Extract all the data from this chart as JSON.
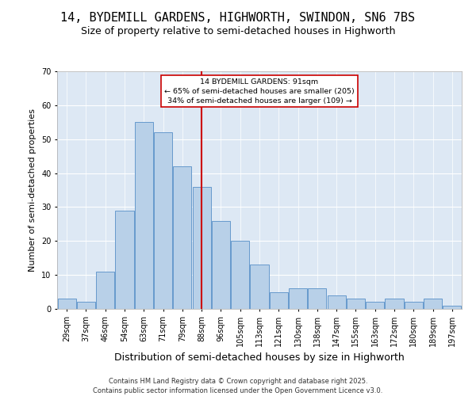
{
  "title1": "14, BYDEMILL GARDENS, HIGHWORTH, SWINDON, SN6 7BS",
  "title2": "Size of property relative to semi-detached houses in Highworth",
  "xlabel": "Distribution of semi-detached houses by size in Highworth",
  "ylabel": "Number of semi-detached properties",
  "categories": [
    "29sqm",
    "37sqm",
    "46sqm",
    "54sqm",
    "63sqm",
    "71sqm",
    "79sqm",
    "88sqm",
    "96sqm",
    "105sqm",
    "113sqm",
    "121sqm",
    "130sqm",
    "138sqm",
    "147sqm",
    "155sqm",
    "163sqm",
    "172sqm",
    "180sqm",
    "189sqm",
    "197sqm"
  ],
  "values": [
    3,
    2,
    11,
    29,
    55,
    52,
    42,
    36,
    26,
    20,
    13,
    5,
    6,
    6,
    4,
    3,
    2,
    3,
    2,
    3,
    1
  ],
  "bar_color": "#b8d0e8",
  "bar_edge_color": "#6699cc",
  "vline_x_index": 7,
  "vline_color": "#cc0000",
  "annotation_text": "14 BYDEMILL GARDENS: 91sqm\n← 65% of semi-detached houses are smaller (205)\n34% of semi-detached houses are larger (109) →",
  "annotation_box_color": "#ffffff",
  "annotation_box_edge": "#cc0000",
  "ylim": [
    0,
    70
  ],
  "yticks": [
    0,
    10,
    20,
    30,
    40,
    50,
    60,
    70
  ],
  "bg_color": "#dde8f4",
  "footer": "Contains HM Land Registry data © Crown copyright and database right 2025.\nContains public sector information licensed under the Open Government Licence v3.0.",
  "grid_color": "#ffffff",
  "title_fontsize": 11,
  "subtitle_fontsize": 9,
  "tick_fontsize": 7,
  "ylabel_fontsize": 8,
  "xlabel_fontsize": 9,
  "footer_fontsize": 6
}
